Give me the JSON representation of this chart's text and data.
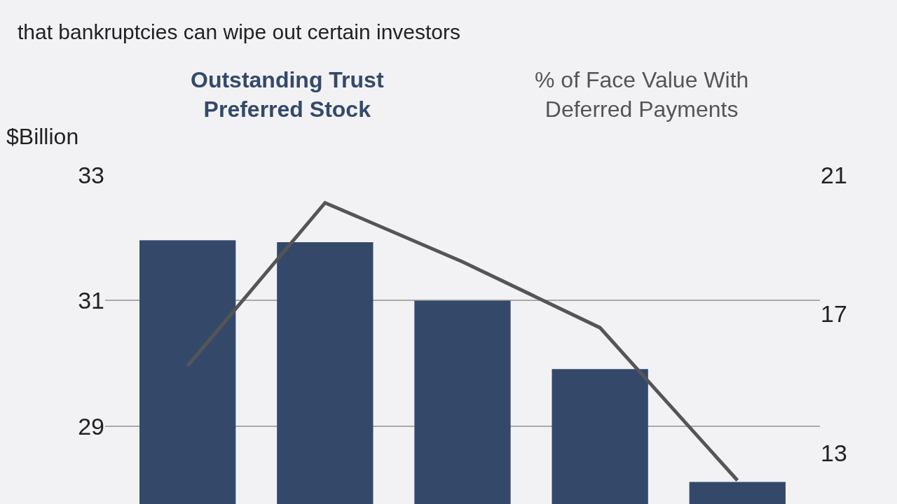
{
  "chart_data": {
    "type": "bar",
    "subtitle": "that bankruptcies can wipe out certain investors",
    "ylabel": "$Billion",
    "categories": [
      null,
      null,
      null,
      null,
      null
    ],
    "series": [
      {
        "name": "Outstanding Trust Preferred Stock",
        "color": "#34496a",
        "values": [
          31.96,
          31.93,
          31.0,
          29.91,
          28.11
        ]
      },
      {
        "name": "% of Face Value With Deferred Payments",
        "color": "#555555",
        "type": "line",
        "axis": "y2",
        "values": [
          15.5,
          20.2,
          18.5,
          16.6,
          12.2
        ]
      }
    ],
    "ylim": [
      27.76,
      33
    ],
    "yticks": [
      29,
      31,
      33
    ],
    "y2lim": [
      11.52,
      21
    ],
    "y2ticks": [
      13,
      17,
      21
    ],
    "grid": "y",
    "legend": false
  }
}
